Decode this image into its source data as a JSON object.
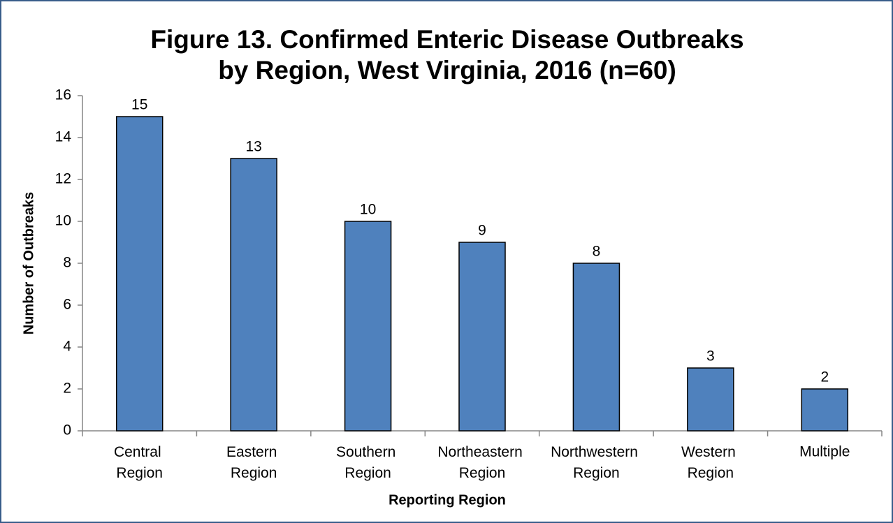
{
  "chart_data": {
    "type": "bar",
    "title": [
      "Figure 13. Confirmed Enteric Disease Outbreaks",
      "by Region, West Virginia, 2016 (n=60)"
    ],
    "x_label": "Reporting Region",
    "y_label": "Number of Outbreaks",
    "categories": [
      "Central Region",
      "Eastern Region",
      "Southern Region",
      "Northeastern Region",
      "Northwestern Region",
      "Western Region",
      "Multiple"
    ],
    "values": [
      15,
      13,
      10,
      9,
      8,
      3,
      2
    ],
    "color": "#4f81bd",
    "ylim": [
      0,
      16
    ],
    "yticks": [
      0,
      2,
      4,
      6,
      8,
      10,
      12,
      14,
      16
    ],
    "grid": false
  }
}
